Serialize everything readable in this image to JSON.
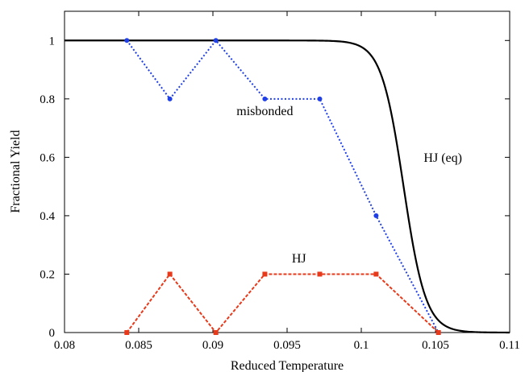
{
  "chart_data": {
    "type": "line",
    "xlabel": "Reduced Temperature",
    "ylabel": "Fractional Yield",
    "xlim": [
      0.08,
      0.11
    ],
    "ylim": [
      0,
      1.1
    ],
    "xticks": [
      "0.08",
      "0.085",
      "0.09",
      "0.095",
      "0.1",
      "0.105",
      "0.11"
    ],
    "yticks": [
      "0",
      "0.2",
      "0.4",
      "0.6",
      "0.8",
      "1"
    ],
    "grid": false,
    "legend": "none",
    "series": [
      {
        "name": "HJ (eq)",
        "color": "#000000",
        "style": "solid",
        "marker": "none",
        "curve": "sigmoid",
        "x": [
          0.08,
          0.085,
          0.09,
          0.095,
          0.097,
          0.099,
          0.1,
          0.101,
          0.102,
          0.1025,
          0.103,
          0.1035,
          0.104,
          0.105,
          0.106,
          0.107,
          0.108,
          0.11
        ],
        "y": [
          1.0,
          1.0,
          1.0,
          1.0,
          0.999,
          0.99,
          0.97,
          0.91,
          0.75,
          0.62,
          0.48,
          0.35,
          0.22,
          0.08,
          0.025,
          0.008,
          0.002,
          0.0
        ]
      },
      {
        "name": "misbonded",
        "color": "#1f3fe8",
        "style": "dotted",
        "marker": "circle",
        "x": [
          0.0842,
          0.0871,
          0.0902,
          0.0935,
          0.0972,
          0.101,
          0.1052
        ],
        "y": [
          1.0,
          0.8,
          1.0,
          0.8,
          0.8,
          0.4,
          0.0
        ]
      },
      {
        "name": "HJ",
        "color": "#e8391a",
        "style": "dashed",
        "marker": "square",
        "x": [
          0.0842,
          0.0871,
          0.0902,
          0.0935,
          0.0972,
          0.101,
          0.1052
        ],
        "y": [
          0.0,
          0.2,
          0.0,
          0.2,
          0.2,
          0.2,
          0.0
        ]
      }
    ],
    "annotations": [
      {
        "text": "misbonded",
        "x": 0.0935,
        "y": 0.745
      },
      {
        "text": "HJ (eq)",
        "x": 0.1055,
        "y": 0.585
      },
      {
        "text": "HJ",
        "x": 0.0958,
        "y": 0.24
      }
    ]
  }
}
